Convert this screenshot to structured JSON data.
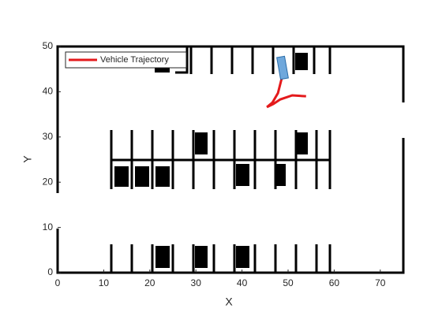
{
  "chart_data": {
    "type": "line",
    "x_label": "X",
    "y_label": "Y",
    "xlim": [
      0,
      75
    ],
    "ylim": [
      0,
      50
    ],
    "xticks": [
      0,
      10,
      20,
      30,
      40,
      50,
      60,
      70
    ],
    "yticks": [
      0,
      10,
      20,
      30,
      40,
      50
    ],
    "legend": "upper left",
    "series": [
      {
        "name": "Vehicle Trajectory",
        "color": "#e41a1c",
        "x": [
          48.8,
          48.6,
          47.8,
          46.6,
          45.4,
          46.8,
          48.3,
          50.9,
          53.9
        ],
        "values": [
          46.3,
          42.9,
          39.7,
          37.6,
          36.6,
          37.3,
          38.3,
          39.2,
          39.0
        ]
      }
    ]
  }
}
